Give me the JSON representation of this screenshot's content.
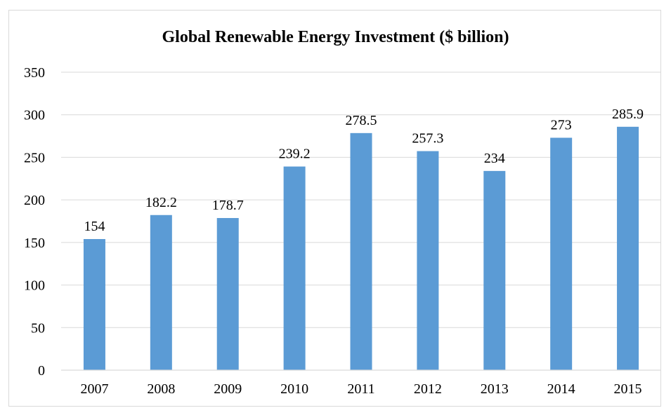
{
  "chart_data": {
    "type": "bar",
    "title": "Global Renewable Energy Investment ($ billion)",
    "xlabel": "",
    "ylabel": "",
    "categories": [
      "2007",
      "2008",
      "2009",
      "2010",
      "2011",
      "2012",
      "2013",
      "2014",
      "2015"
    ],
    "values": [
      154,
      182.2,
      178.7,
      239.2,
      278.5,
      257.3,
      234,
      273,
      285.9
    ],
    "data_labels": [
      "154",
      "182.2",
      "178.7",
      "239.2",
      "278.5",
      "257.3",
      "234",
      "273",
      "285.9"
    ],
    "ylim": [
      0,
      350
    ],
    "yticks": [
      0,
      50,
      100,
      150,
      200,
      250,
      300,
      350
    ],
    "grid": true,
    "legend": "none",
    "colors": {
      "bar": "#5b9bd5",
      "grid": "#d9d9d9",
      "axis": "#d9d9d9",
      "text": "#000000"
    }
  }
}
